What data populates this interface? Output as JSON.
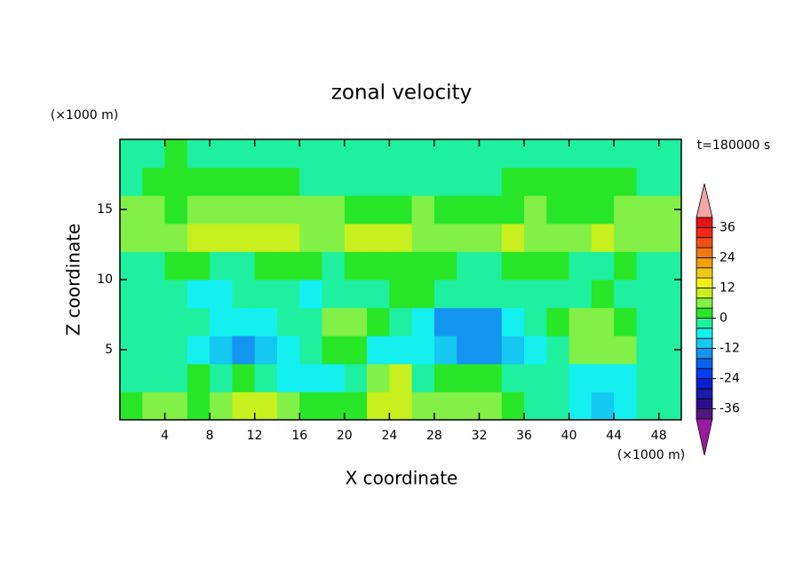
{
  "chart_data": {
    "type": "contour",
    "title": "zonal velocity",
    "x_label": "X coordinate",
    "y_label": "Z coordinate",
    "x_unit": "(×1000 m)",
    "y_unit": "(×1000 m)",
    "time_label": "t=180000 s",
    "xlim": [
      0,
      50
    ],
    "ylim": [
      0,
      20
    ],
    "xticks": [
      4,
      8,
      12,
      16,
      20,
      24,
      28,
      32,
      36,
      40,
      44,
      48
    ],
    "yticks": [
      5,
      10,
      15
    ],
    "x": [
      1,
      3,
      5,
      7,
      9,
      11,
      13,
      15,
      17,
      19,
      21,
      23,
      25,
      27,
      29,
      31,
      33,
      35,
      37,
      39,
      41,
      43,
      45,
      47,
      49
    ],
    "y": [
      1,
      3,
      5,
      7,
      9,
      11,
      13,
      15,
      17,
      19
    ],
    "z": [
      [
        2,
        5,
        5,
        2,
        6,
        9,
        9,
        6,
        2,
        2,
        2,
        9,
        9,
        5,
        6,
        6,
        6,
        2,
        -2,
        -2,
        -6,
        -12,
        -8,
        -4,
        -2
      ],
      [
        -3,
        -3,
        -2,
        2,
        -2,
        2,
        -2,
        -5,
        -5,
        -6,
        -2,
        5,
        9,
        -2,
        2,
        2,
        2,
        -2,
        -2,
        -2,
        -6,
        -5,
        -5,
        -3,
        -2
      ],
      [
        -3,
        -3,
        -3,
        -6,
        -9,
        -13,
        -9,
        -6,
        -3,
        3,
        3,
        -6,
        -8,
        -6,
        -9,
        -14,
        -14,
        -9,
        -6,
        -2,
        6,
        6,
        6,
        -2,
        -2
      ],
      [
        -3,
        -3,
        -3,
        -3,
        -6,
        -6,
        -6,
        -3,
        -3,
        5,
        5,
        2,
        -2,
        -6,
        -14,
        -14,
        -14,
        -6,
        -3,
        2,
        6,
        6,
        2,
        -2,
        -2
      ],
      [
        -3,
        -2,
        -3,
        -6,
        -6,
        -3,
        -2,
        -3,
        -6,
        -3,
        -2,
        -2,
        2,
        2,
        -3,
        -3,
        -3,
        -2,
        -3,
        -3,
        -2,
        2,
        -3,
        -2,
        -2
      ],
      [
        -2,
        -2,
        2,
        2,
        -2,
        -2,
        2,
        2,
        2,
        -2,
        2,
        2,
        2,
        2,
        2,
        -2,
        -2,
        2,
        2,
        2,
        -2,
        -2,
        2,
        -2,
        -2
      ],
      [
        5,
        6,
        6,
        9,
        9,
        9,
        9,
        9,
        6,
        6,
        9,
        9,
        9,
        6,
        6,
        5,
        6,
        9,
        6,
        6,
        6,
        9,
        6,
        6,
        5
      ],
      [
        5,
        5,
        2,
        5,
        5,
        6,
        5,
        5,
        5,
        6,
        2,
        2,
        2,
        5,
        2,
        2,
        2,
        2,
        5,
        2,
        2,
        2,
        5,
        5,
        5
      ],
      [
        -2,
        2,
        2,
        2,
        2,
        2,
        2,
        2,
        -2,
        -2,
        -2,
        -2,
        -2,
        -2,
        -2,
        -2,
        -2,
        2,
        2,
        2,
        2,
        2,
        2,
        -2,
        -2
      ],
      [
        -2,
        -2,
        2,
        -2,
        -2,
        -2,
        -2,
        -2,
        -2,
        -2,
        -2,
        -2,
        -2,
        -2,
        -2,
        -2,
        -2,
        -2,
        -2,
        -2,
        -2,
        -2,
        -2,
        -2,
        -2
      ]
    ],
    "levels": [
      -40,
      -36,
      -32,
      -28,
      -24,
      -20,
      -16,
      -12,
      -8,
      -4,
      0,
      4,
      8,
      12,
      16,
      20,
      24,
      28,
      32,
      36,
      40
    ],
    "colors": [
      "#50187f",
      "#2c0f8c",
      "#1c1ca8",
      "#0a1ed2",
      "#0a3cf0",
      "#0a64f0",
      "#1496f0",
      "#14c8f0",
      "#14f0f0",
      "#1ef0a0",
      "#28e628",
      "#82f046",
      "#c8f01e",
      "#f0f014",
      "#f0c814",
      "#f0a00a",
      "#f07814",
      "#f05014",
      "#f02814",
      "#e61414"
    ],
    "under_color": "#9b1ba0",
    "over_color": "#f4a5a5",
    "cbar_ticks": [
      -36,
      -24,
      -12,
      0,
      12,
      24,
      36
    ]
  }
}
